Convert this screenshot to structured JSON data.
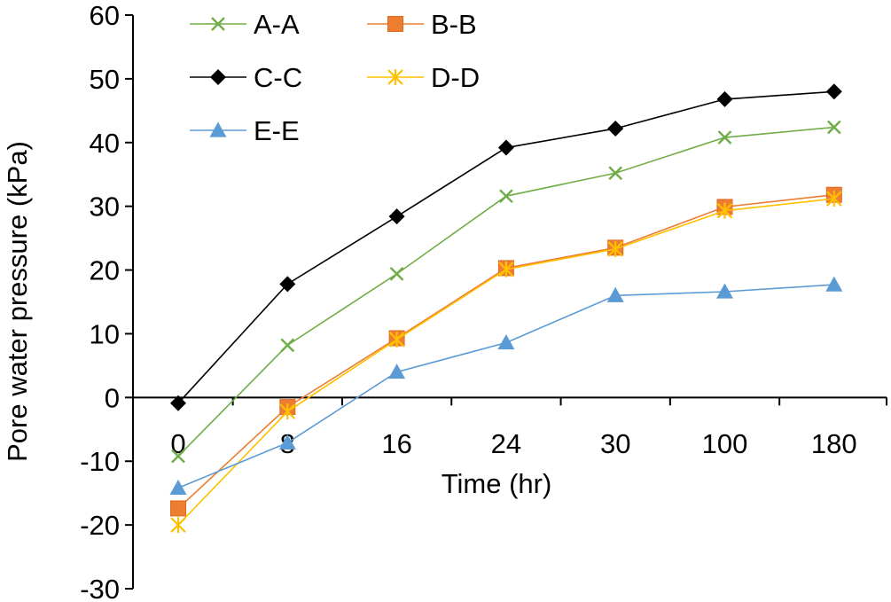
{
  "chart_data": {
    "type": "line",
    "title": "",
    "xlabel": "Time (hr)",
    "ylabel": "Pore water pressure  (kPa)",
    "categories": [
      "0",
      "8",
      "16",
      "24",
      "30",
      "100",
      "180"
    ],
    "ylim": [
      -30,
      60
    ],
    "yticks": [
      60,
      50,
      40,
      30,
      20,
      10,
      0,
      -10,
      -20,
      -30
    ],
    "grid": false,
    "legend_position": "top-left",
    "series": [
      {
        "name": "A-A",
        "color": "#70ad47",
        "marker": "x-icon",
        "values": [
          -9.2,
          8.2,
          19.4,
          31.6,
          35.2,
          40.8,
          42.4
        ]
      },
      {
        "name": "B-B",
        "color": "#ed7d31",
        "marker": "square-icon",
        "values": [
          -17.4,
          -1.5,
          9.3,
          20.3,
          23.5,
          29.9,
          31.8
        ]
      },
      {
        "name": "C-C",
        "color": "#000000",
        "marker": "diamond-icon",
        "values": [
          -0.9,
          17.8,
          28.4,
          39.2,
          42.2,
          46.8,
          48.0
        ]
      },
      {
        "name": "D-D",
        "color": "#ffc000",
        "marker": "asterisk-icon",
        "values": [
          -20.0,
          -2.2,
          9.1,
          20.1,
          23.3,
          29.3,
          31.2
        ]
      },
      {
        "name": "E-E",
        "color": "#5b9bd5",
        "marker": "triangle-icon",
        "values": [
          -14.2,
          -7.1,
          4.0,
          8.6,
          16.0,
          16.6,
          17.7
        ]
      }
    ]
  }
}
